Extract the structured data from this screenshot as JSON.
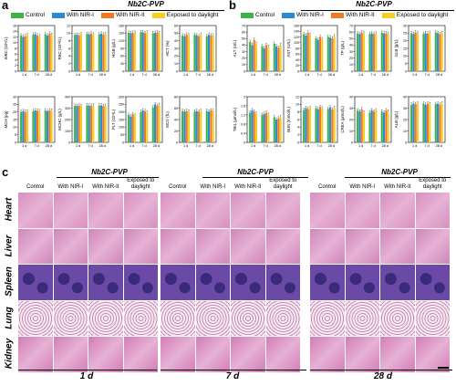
{
  "panels": {
    "a": "a",
    "b": "b",
    "c": "c"
  },
  "legend": [
    {
      "label": "Control",
      "color": "#3db34a"
    },
    {
      "label": "With NIR-I",
      "color": "#2a8ad6"
    },
    {
      "label": "With NIR-II",
      "color": "#f07a24"
    },
    {
      "label": "Exposed to daylight",
      "color": "#f3cf2a"
    }
  ],
  "group_title": "Nb2C-PVP",
  "time_ticks": [
    "1 d",
    "7 d",
    "28 d"
  ],
  "chart_data": [
    {
      "type": "bar",
      "ylabel": "WBC (10⁹/L)",
      "ylim": [
        0,
        16
      ],
      "yticks": [
        0,
        2,
        4,
        6,
        8,
        10,
        12,
        14,
        16
      ],
      "categories": [
        "1 d",
        "7 d",
        "28 d"
      ],
      "series": [
        {
          "name": "Control",
          "values": [
            12.5,
            12.8,
            13
          ]
        },
        {
          "name": "With NIR-I",
          "values": [
            12,
            13,
            12.5
          ]
        },
        {
          "name": "With NIR-II",
          "values": [
            12.3,
            12.5,
            13.2
          ]
        },
        {
          "name": "Exposed to daylight",
          "values": [
            12.8,
            12.2,
            12.7
          ]
        }
      ]
    },
    {
      "type": "bar",
      "ylabel": "RBC (10¹²/L)",
      "ylim": [
        0,
        12
      ],
      "yticks": [
        0,
        2,
        4,
        6,
        8,
        10,
        12
      ],
      "categories": [
        "1 d",
        "7 d",
        "28 d"
      ],
      "series": [
        {
          "name": "Control",
          "values": [
            9.5,
            9.8,
            9.7
          ]
        },
        {
          "name": "With NIR-I",
          "values": [
            9.6,
            9.7,
            9.9
          ]
        },
        {
          "name": "With NIR-II",
          "values": [
            9.4,
            9.9,
            9.6
          ]
        },
        {
          "name": "Exposed to daylight",
          "values": [
            9.7,
            9.6,
            9.8
          ]
        }
      ]
    },
    {
      "type": "bar",
      "ylabel": "HGB (g/L)",
      "ylim": [
        0,
        180
      ],
      "yticks": [
        0,
        30,
        60,
        90,
        120,
        150,
        180
      ],
      "categories": [
        "1 d",
        "7 d",
        "28 d"
      ],
      "series": [
        {
          "name": "Control",
          "values": [
            152,
            154,
            150
          ]
        },
        {
          "name": "With NIR-I",
          "values": [
            150,
            153,
            151
          ]
        },
        {
          "name": "With NIR-II",
          "values": [
            151,
            150,
            153
          ]
        },
        {
          "name": "Exposed to daylight",
          "values": [
            153,
            152,
            150
          ]
        }
      ]
    },
    {
      "type": "bar",
      "ylabel": "HCT (%)",
      "ylim": [
        0,
        60
      ],
      "yticks": [
        0,
        10,
        20,
        30,
        40,
        50,
        60
      ],
      "categories": [
        "1 d",
        "7 d",
        "28 d"
      ],
      "series": [
        {
          "name": "Control",
          "values": [
            47,
            48,
            46
          ]
        },
        {
          "name": "With NIR-I",
          "values": [
            46,
            47,
            48
          ]
        },
        {
          "name": "With NIR-II",
          "values": [
            48,
            46,
            47
          ]
        },
        {
          "name": "Exposed to daylight",
          "values": [
            47,
            48,
            47
          ]
        }
      ]
    },
    {
      "type": "bar",
      "ylabel": "MCH (pg)",
      "ylim": [
        0,
        30
      ],
      "yticks": [
        0,
        5,
        10,
        15,
        20,
        25,
        30
      ],
      "categories": [
        "1 d",
        "7 d",
        "28 d"
      ],
      "series": [
        {
          "name": "Control",
          "values": [
            20,
            20.5,
            21
          ]
        },
        {
          "name": "With NIR-I",
          "values": [
            20.5,
            21,
            20.5
          ]
        },
        {
          "name": "With NIR-II",
          "values": [
            20,
            20.8,
            21
          ]
        },
        {
          "name": "Exposed to daylight",
          "values": [
            20.3,
            20.5,
            20.8
          ]
        }
      ]
    },
    {
      "type": "bar",
      "ylabel": "MCHC (g/L)",
      "ylim": [
        0,
        400
      ],
      "yticks": [
        0,
        100,
        200,
        300,
        400
      ],
      "categories": [
        "1 d",
        "7 d",
        "28 d"
      ],
      "series": [
        {
          "name": "Control",
          "values": [
            320,
            325,
            322
          ]
        },
        {
          "name": "With NIR-I",
          "values": [
            318,
            322,
            325
          ]
        },
        {
          "name": "With NIR-II",
          "values": [
            322,
            320,
            318
          ]
        },
        {
          "name": "Exposed to daylight",
          "values": [
            320,
            324,
            321
          ]
        }
      ]
    },
    {
      "type": "bar",
      "ylabel": "PLT (10⁹/L)",
      "ylim": [
        0,
        300
      ],
      "yticks": [
        0,
        50,
        100,
        150,
        200,
        250,
        300
      ],
      "categories": [
        "1 d",
        "7 d",
        "28 d"
      ],
      "series": [
        {
          "name": "Control",
          "values": [
            180,
            200,
            230
          ]
        },
        {
          "name": "With NIR-I",
          "values": [
            170,
            210,
            250
          ]
        },
        {
          "name": "With NIR-II",
          "values": [
            185,
            205,
            240
          ]
        },
        {
          "name": "Exposed to daylight",
          "values": [
            175,
            195,
            245
          ]
        }
      ]
    },
    {
      "type": "bar",
      "ylabel": "MCV (fL)",
      "ylim": [
        0,
        80
      ],
      "yticks": [
        0,
        20,
        40,
        60,
        80
      ],
      "categories": [
        "1 d",
        "7 d",
        "28 d"
      ],
      "series": [
        {
          "name": "Control",
          "values": [
            55,
            54,
            55
          ]
        },
        {
          "name": "With NIR-I",
          "values": [
            54,
            55,
            54
          ]
        },
        {
          "name": "With NIR-II",
          "values": [
            55,
            54,
            56
          ]
        },
        {
          "name": "Exposed to daylight",
          "values": [
            54,
            55,
            55
          ]
        }
      ]
    },
    {
      "type": "bar",
      "ylabel": "ALT (U/L)",
      "ylim": [
        0,
        70
      ],
      "yticks": [
        0,
        10,
        20,
        30,
        40,
        50,
        60,
        70
      ],
      "categories": [
        "1 d",
        "7 d",
        "28 d"
      ],
      "series": [
        {
          "name": "Control",
          "values": [
            45,
            38,
            42
          ]
        },
        {
          "name": "With NIR-I",
          "values": [
            40,
            35,
            38
          ]
        },
        {
          "name": "With NIR-II",
          "values": [
            48,
            40,
            36
          ]
        },
        {
          "name": "Exposed to daylight",
          "values": [
            42,
            37,
            40
          ]
        }
      ]
    },
    {
      "type": "bar",
      "ylabel": "AST (U/L)",
      "ylim": [
        0,
        160
      ],
      "yticks": [
        0,
        20,
        40,
        60,
        80,
        100,
        120,
        140,
        160
      ],
      "categories": [
        "1 d",
        "7 d",
        "28 d"
      ],
      "series": [
        {
          "name": "Control",
          "values": [
            130,
            115,
            120
          ]
        },
        {
          "name": "With NIR-I",
          "values": [
            125,
            110,
            118
          ]
        },
        {
          "name": "With NIR-II",
          "values": [
            135,
            120,
            115
          ]
        },
        {
          "name": "Exposed to daylight",
          "values": [
            128,
            112,
            122
          ]
        }
      ]
    },
    {
      "type": "bar",
      "ylabel": "TP (g/L)",
      "ylim": [
        0,
        70
      ],
      "yticks": [
        0,
        10,
        20,
        30,
        40,
        50,
        60,
        70
      ],
      "categories": [
        "1 d",
        "7 d",
        "28 d"
      ],
      "series": [
        {
          "name": "Control",
          "values": [
            58,
            57,
            59
          ]
        },
        {
          "name": "With NIR-I",
          "values": [
            57,
            58,
            58
          ]
        },
        {
          "name": "With NIR-II",
          "values": [
            59,
            57,
            58
          ]
        },
        {
          "name": "Exposed to daylight",
          "values": [
            58,
            58,
            57
          ]
        }
      ]
    },
    {
      "type": "bar",
      "ylabel": "GLB (g/L)",
      "ylim": [
        0,
        30
      ],
      "yticks": [
        0,
        5,
        10,
        15,
        20,
        25,
        30
      ],
      "categories": [
        "1 d",
        "7 d",
        "28 d"
      ],
      "series": [
        {
          "name": "Control",
          "values": [
            25,
            24.5,
            25.5
          ]
        },
        {
          "name": "With NIR-I",
          "values": [
            24.5,
            25,
            25
          ]
        },
        {
          "name": "With NIR-II",
          "values": [
            25.5,
            24.8,
            24.5
          ]
        },
        {
          "name": "Exposed to daylight",
          "values": [
            25,
            25.2,
            25
          ]
        }
      ]
    },
    {
      "type": "bar",
      "ylabel": "TBIL (μmol/L)",
      "ylim": [
        0,
        2.0
      ],
      "yticks": [
        0,
        0.4,
        0.8,
        1.2,
        1.6,
        2.0
      ],
      "categories": [
        "1 d",
        "7 d",
        "28 d"
      ],
      "series": [
        {
          "name": "Control",
          "values": [
            1.3,
            1.2,
            1.1
          ]
        },
        {
          "name": "With NIR-I",
          "values": [
            1.4,
            1.25,
            1.0
          ]
        },
        {
          "name": "With NIR-II",
          "values": [
            1.35,
            1.3,
            1.05
          ]
        },
        {
          "name": "Exposed to daylight",
          "values": [
            1.25,
            1.2,
            1.1
          ]
        }
      ]
    },
    {
      "type": "bar",
      "ylabel": "BUN (mmol/L)",
      "ylim": [
        0,
        12
      ],
      "yticks": [
        0,
        2,
        4,
        6,
        8,
        10,
        12
      ],
      "categories": [
        "1 d",
        "7 d",
        "28 d"
      ],
      "series": [
        {
          "name": "Control",
          "values": [
            8.5,
            9,
            8.8
          ]
        },
        {
          "name": "With NIR-I",
          "values": [
            9,
            8.7,
            9.2
          ]
        },
        {
          "name": "With NIR-II",
          "values": [
            8.8,
            9.3,
            8.6
          ]
        },
        {
          "name": "Exposed to daylight",
          "values": [
            9.1,
            8.9,
            9
          ]
        }
      ]
    },
    {
      "type": "bar",
      "ylabel": "CREA (μmol/L)",
      "ylim": [
        0,
        40
      ],
      "yticks": [
        0,
        10,
        20,
        30,
        40
      ],
      "categories": [
        "1 d",
        "7 d",
        "28 d"
      ],
      "series": [
        {
          "name": "Control",
          "values": [
            28,
            26,
            27
          ]
        },
        {
          "name": "With NIR-I",
          "values": [
            27,
            28,
            26
          ]
        },
        {
          "name": "With NIR-II",
          "values": [
            29,
            27,
            28
          ]
        },
        {
          "name": "Exposed to daylight",
          "values": [
            26,
            28,
            27
          ]
        }
      ]
    },
    {
      "type": "bar",
      "ylabel": "ALB (g/L)",
      "ylim": [
        0,
        40
      ],
      "yticks": [
        0,
        10,
        20,
        30,
        40
      ],
      "categories": [
        "1 d",
        "7 d",
        "28 d"
      ],
      "series": [
        {
          "name": "Control",
          "values": [
            33,
            34,
            33.5
          ]
        },
        {
          "name": "With NIR-I",
          "values": [
            34,
            33,
            34
          ]
        },
        {
          "name": "With NIR-II",
          "values": [
            33.5,
            34,
            33
          ]
        },
        {
          "name": "Exposed to daylight",
          "values": [
            34,
            33.5,
            34
          ]
        }
      ]
    }
  ],
  "histology": {
    "column_titles": [
      "Control",
      "With NIR-I",
      "With NIR-II",
      "Exposed to daylight"
    ],
    "rows": [
      "Heart",
      "Liver",
      "Spleen",
      "Lung",
      "Kidney"
    ],
    "times": [
      "1 d",
      "7 d",
      "28 d"
    ]
  },
  "colors": {
    "heart": "#d98fbf",
    "liver": "#cf86b9",
    "spleen": "#6a4aa6",
    "lung": "#e9c7de",
    "kidney": "#d47cb8"
  }
}
